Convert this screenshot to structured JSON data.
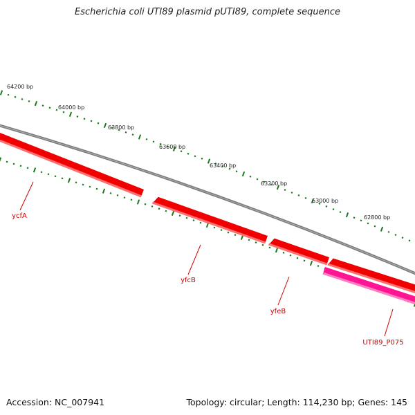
{
  "title": "Escherichia coli UTI89 plasmid pUTI89, complete sequence",
  "accession": "Accession: NC_007941",
  "summary": "Topology: circular; Length: 114,230 bp; Genes: 145",
  "colors": {
    "backbone": "#7b7b7b",
    "gene": "#f00000",
    "gene_highlight": "#ff7070",
    "gene_shadow": "#b80000",
    "gene_pink": "#ff1493",
    "gene_pink_highlight": "#ff7fc0",
    "tick": "#1a7a1a",
    "gene_label": "#cc0000",
    "bp_label": "#222222"
  },
  "scale_labels": [
    "64200 bp",
    "64000 bp",
    "63800 bp",
    "63600 bp",
    "63400 bp",
    "63200 bp",
    "63000 bp",
    "62800 bp"
  ],
  "genes": [
    {
      "name": "ycfA",
      "color": "gene"
    },
    {
      "name": "yfcB",
      "color": "gene"
    },
    {
      "name": "yfeB",
      "color": "gene"
    },
    {
      "name": "UTI89_P075",
      "color": "gene_pink"
    }
  ]
}
